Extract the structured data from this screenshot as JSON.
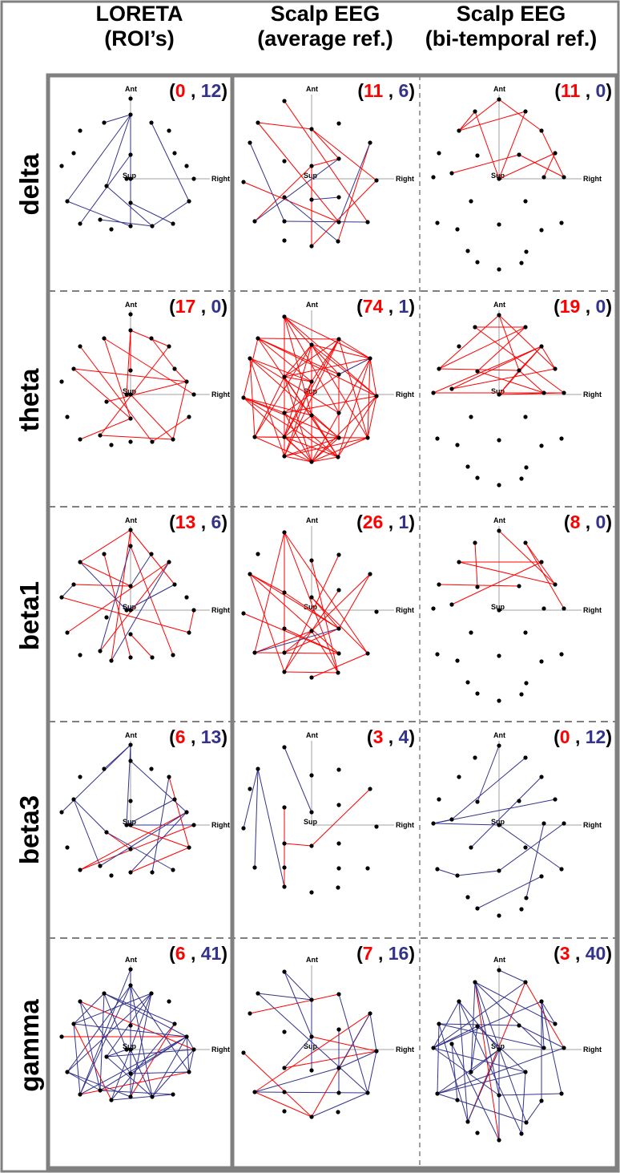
{
  "columns": [
    "LORETA\n(ROI’s)",
    "Scalp EEG\n(average ref.)",
    "Scalp EEG\n(bi-temporal ref.)"
  ],
  "column_lines": [
    [
      "LORETA",
      "(ROI’s)"
    ],
    [
      "Scalp EEG",
      "(average ref.)"
    ],
    [
      "Scalp EEG",
      "(bi-temporal ref.)"
    ]
  ],
  "rows": [
    "delta",
    "theta",
    "beta1",
    "beta3",
    "gamma"
  ],
  "axis_labels": {
    "anterior": "Ant",
    "superior": "Sup",
    "right": "Right"
  },
  "colors": {
    "positive": "#ff0000",
    "negative": "#33338c",
    "node": "#000000",
    "frame": "#808080",
    "axis": "#a0a0a0"
  },
  "cells": [
    [
      {
        "red": "0",
        "blue": "12"
      },
      {
        "red": "11",
        "blue": "6"
      },
      {
        "red": "11",
        "blue": "0"
      }
    ],
    [
      {
        "red": "17",
        "blue": "0"
      },
      {
        "red": "74",
        "blue": "1"
      },
      {
        "red": "19",
        "blue": "0"
      }
    ],
    [
      {
        "red": "13",
        "blue": "6"
      },
      {
        "red": "26",
        "blue": "1"
      },
      {
        "red": "8",
        "blue": "0"
      }
    ],
    [
      {
        "red": "6",
        "blue": "13"
      },
      {
        "red": "3",
        "blue": "4"
      },
      {
        "red": "0",
        "blue": "12"
      }
    ],
    [
      {
        "red": "6",
        "blue": "41"
      },
      {
        "red": "7",
        "blue": "16"
      },
      {
        "red": "3",
        "blue": "40"
      }
    ]
  ]
}
